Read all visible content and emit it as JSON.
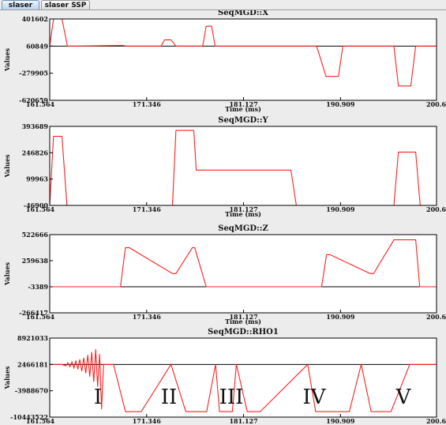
{
  "tabs": [
    {
      "label": "slaser",
      "active": true
    },
    {
      "label": "slaser SSP",
      "active": false
    }
  ],
  "colors": {
    "trace": "#ff2020",
    "baseline": "#000000",
    "plot_bg": "#ffffff"
  },
  "chart_data": [
    {
      "type": "line",
      "title": "SeqMGD::X",
      "xlabel": "Time (ms)",
      "ylabel": "Values",
      "xlim": [
        161.564,
        200.6
      ],
      "ylim": [
        -620659,
        401602
      ],
      "xticks": [
        "161.564",
        "171.346",
        "181.127",
        "190.909",
        "200.6"
      ],
      "yticks": [
        "401602",
        "60849",
        "-279905",
        "-620659"
      ],
      "baseline": 60849,
      "series": [
        {
          "x": [
            161.564,
            161.95,
            162.8,
            163.35,
            164.2,
            168.9,
            169.3,
            171.5,
            172.8,
            173.15,
            173.8,
            174.3,
            174.65,
            176.5,
            177.0,
            177.35,
            177.9,
            178.25,
            185.0,
            188.0,
            188.5,
            189.45,
            190.7,
            191.15,
            194.3,
            196.3,
            196.75,
            198.0,
            198.5,
            200.6
          ],
          "y": [
            60849,
            401602,
            401602,
            60849,
            60849,
            70000,
            60849,
            60849,
            60849,
            140000,
            140000,
            60849,
            60849,
            60849,
            60849,
            310000,
            310000,
            60849,
            60849,
            60849,
            60849,
            -320000,
            -320000,
            60849,
            60849,
            60849,
            -440000,
            -440000,
            60849,
            60849
          ]
        }
      ]
    },
    {
      "type": "line",
      "title": "SeqMGD::Y",
      "xlabel": "Time (ms)",
      "ylabel": "Values",
      "xlim": [
        161.564,
        200.6
      ],
      "ylim": [
        -46900,
        393689
      ],
      "xticks": [
        "161.564",
        "171.346",
        "181.127",
        "190.909",
        "200.6"
      ],
      "yticks": [
        "393689",
        "246826",
        "99963",
        "-46900"
      ],
      "baseline": -46900,
      "series": [
        {
          "x": [
            161.564,
            161.95,
            162.8,
            163.3,
            173.95,
            174.3,
            176.1,
            176.35,
            185.9,
            186.45,
            196.3,
            196.75,
            198.5,
            198.95,
            200.6
          ],
          "y": [
            -46900,
            338000,
            338000,
            -46900,
            -46900,
            371000,
            371000,
            150000,
            150000,
            -46900,
            -46900,
            250000,
            250000,
            -46900,
            -46900
          ]
        }
      ]
    },
    {
      "type": "line",
      "title": "SeqMGD::Z",
      "xlabel": "Time (ms)",
      "ylabel": "Values",
      "xlim": [
        161.564,
        200.6
      ],
      "ylim": [
        -266417,
        522666
      ],
      "xticks": [
        "161.564",
        "171.346",
        "181.127",
        "190.909",
        "200.6"
      ],
      "yticks": [
        "522666",
        "259638",
        "-3389",
        "-266417"
      ],
      "baseline": -3389,
      "series": [
        {
          "x": [
            161.564,
            162.8,
            168.7,
            169.2,
            169.6,
            173.95,
            174.3,
            175.95,
            176.2,
            177.35,
            177.6,
            178.3,
            178.6,
            189.0,
            189.5,
            189.85,
            193.9,
            194.25,
            196.3,
            196.75,
            198.5,
            198.9,
            200.6
          ],
          "y": [
            -3389,
            -3389,
            -3389,
            390000,
            390000,
            130000,
            130000,
            390000,
            390000,
            -3389,
            -3389,
            -3389,
            -3389,
            -3389,
            320000,
            320000,
            130000,
            130000,
            470000,
            470000,
            470000,
            -3389,
            -3389
          ]
        }
      ]
    },
    {
      "type": "line",
      "title": "SeqMGD::RHO1",
      "xlabel": "",
      "ylabel": "Values",
      "xlim": [
        161.564,
        200.6
      ],
      "ylim": [
        -10443522,
        8921033
      ],
      "xticks": [
        "161.564",
        "171.346",
        "181.127",
        "190.909",
        "200.6"
      ],
      "yticks": [
        "8921033",
        "2466181",
        "-3988670",
        "-10443522"
      ],
      "baseline": 2466181,
      "series": [
        {
          "x": [
            161.564,
            162.8,
            163.2,
            163.4,
            163.6,
            163.8,
            164.0,
            164.2,
            164.4,
            164.6,
            164.8,
            165.0,
            165.2,
            165.4,
            165.6,
            165.8,
            166.0,
            166.2,
            166.4,
            166.6,
            166.8,
            167.0,
            167.4,
            168.0,
            169.2,
            170.8,
            173.8,
            175.3,
            177.4,
            178.3,
            178.7,
            180.0,
            180.4,
            181.5,
            182.8,
            187.6,
            188.4,
            191.8,
            193.0,
            194.0,
            196.0,
            197.9,
            198.6,
            200.6
          ],
          "y": [
            2466181,
            2466181,
            2100000,
            2900000,
            1900000,
            3100000,
            1600000,
            3400000,
            1300000,
            3700000,
            800000,
            4100000,
            300000,
            4800000,
            -500000,
            5500000,
            -1800000,
            6200000,
            -3000000,
            5000000,
            -8500000,
            2466181,
            2466181,
            2466181,
            -9100000,
            -9100000,
            2466181,
            -9100000,
            -9100000,
            2466181,
            -9100000,
            -9100000,
            2466181,
            -9100000,
            -9100000,
            2466181,
            -9100000,
            -9100000,
            2466181,
            -9100000,
            -9100000,
            2466181,
            2466181,
            2466181
          ]
        }
      ],
      "annotations": [
        "I",
        "II",
        "III",
        "IV",
        "V"
      ]
    }
  ]
}
